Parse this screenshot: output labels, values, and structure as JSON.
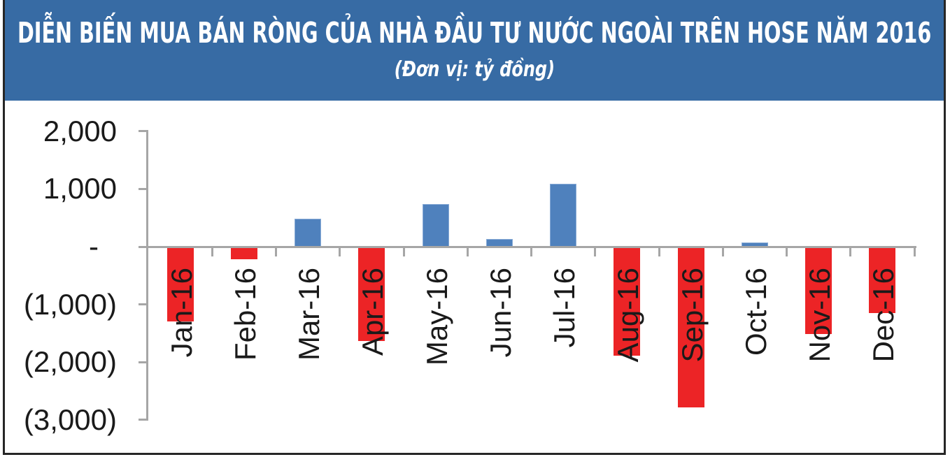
{
  "chart_data": {
    "type": "bar",
    "title": "DIỄN BIẾN MUA BÁN RÒNG CỦA NHÀ ĐẦU TƯ NƯỚC NGOÀI TRÊN HOSE NĂM 2016",
    "subtitle": "(Đơn vị: tỷ đồng)",
    "unit": "tỷ đồng",
    "categories": [
      "Jan-16",
      "Feb-16",
      "Mar-16",
      "Apr-16",
      "May-16",
      "Jun-16",
      "Jul-16",
      "Aug-16",
      "Sep-16",
      "Oct-16",
      "Nov-16",
      "Dec-16"
    ],
    "values": [
      -1300,
      -220,
      490,
      -1640,
      740,
      130,
      1090,
      -1890,
      -2780,
      70,
      -1510,
      -1150
    ],
    "y_axis": {
      "range": [
        -3000,
        2000
      ],
      "ticks": [
        {
          "value": 2000,
          "label": "2,000"
        },
        {
          "value": 1000,
          "label": "1,000"
        },
        {
          "value": 0,
          "label": "-"
        },
        {
          "value": -1000,
          "label": "(1,000)"
        },
        {
          "value": -2000,
          "label": "(2,000)"
        },
        {
          "value": -3000,
          "label": "(3,000)"
        }
      ]
    },
    "grid": "off",
    "legend": "none",
    "colors": {
      "positive_bar": "#4F81BD",
      "positive_bar_border": "#88ABD6",
      "negative_bar": "#EC2426",
      "axis": "#A6A6A6",
      "text": "#1A1A1A",
      "header_background": "#376BA4",
      "header_text": "#FFFFFF",
      "figure_border": "#262626"
    }
  }
}
